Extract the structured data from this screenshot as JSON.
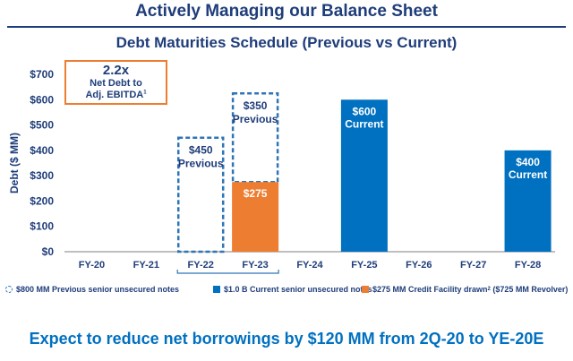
{
  "header": {
    "title": "Actively Managing our Balance Sheet"
  },
  "callout": {
    "value": "2.2x",
    "label_line1": "Net Debt to",
    "label_line2": "Adj. EBITDA",
    "footnote": "1"
  },
  "legend": {
    "previous": "$800 MM Previous senior unsecured notes",
    "current": "$1.0 B Current senior unsecured notes",
    "credit_prefix": "$275 MM Credit Facility drawn",
    "credit_footnote": "2",
    "credit_suffix": " ($725 MM Revolver)"
  },
  "footer": {
    "text": "Expect to reduce net borrowings by $120 MM from 2Q-20 to YE-20E"
  },
  "chart_data": {
    "type": "bar",
    "title": "Debt Maturities Schedule (Previous vs Current)",
    "ylabel": "Debt ($ MM)",
    "ylim": [
      0,
      700
    ],
    "yticks": [
      "$0",
      "$100",
      "$200",
      "$300",
      "$400",
      "$500",
      "$600",
      "$700"
    ],
    "categories": [
      "FY-20",
      "FY-21",
      "FY-22",
      "FY-23",
      "FY-24",
      "FY-25",
      "FY-26",
      "FY-27",
      "FY-28"
    ],
    "series": [
      {
        "name": "$800 MM Previous senior unsecured notes",
        "style": "dashed-outline",
        "color": "#2e75b6",
        "values": [
          0,
          0,
          450,
          350,
          0,
          0,
          0,
          0,
          0
        ],
        "labels": [
          "",
          "",
          "$450",
          "$350",
          "",
          "",
          "",
          "",
          ""
        ],
        "sublabels": [
          "",
          "",
          "Previous",
          "Previous",
          "",
          "",
          "",
          "",
          ""
        ]
      },
      {
        "name": "$1.0 B Current senior unsecured notes",
        "style": "solid",
        "color": "#0070c0",
        "values": [
          0,
          0,
          0,
          0,
          0,
          600,
          0,
          0,
          400
        ],
        "labels": [
          "",
          "",
          "",
          "",
          "",
          "$600",
          "",
          "",
          "$400"
        ],
        "sublabels": [
          "",
          "",
          "",
          "",
          "",
          "Current",
          "",
          "",
          "Current"
        ]
      },
      {
        "name": "$275 MM Credit Facility drawn ($725 MM Revolver)",
        "style": "solid",
        "color": "#ed7d31",
        "values": [
          0,
          0,
          0,
          275,
          0,
          0,
          0,
          0,
          0
        ],
        "labels": [
          "",
          "",
          "",
          "$275",
          "",
          "",
          "",
          "",
          ""
        ],
        "sublabels": [
          "",
          "",
          "",
          "",
          "",
          "",
          "",
          "",
          ""
        ]
      }
    ],
    "bracket": {
      "from": "FY-22",
      "to": "FY-23",
      "color": "#2e75b6"
    }
  }
}
